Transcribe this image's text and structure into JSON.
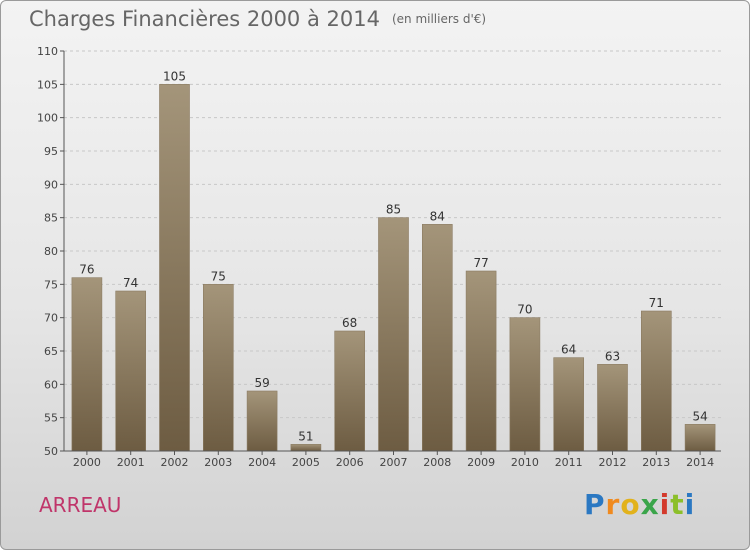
{
  "header": {
    "title": "Charges Financières 2000 à 2014",
    "subtitle": "(en milliers d'€)"
  },
  "footer": {
    "commune": "ARREAU",
    "logo": [
      "P",
      "r",
      "o",
      "x",
      "i",
      "t",
      "i"
    ]
  },
  "chart_data": {
    "type": "bar",
    "title": "Charges Financières 2000 à 2014",
    "subtitle": "(en milliers d'€)",
    "categories": [
      "2000",
      "2001",
      "2002",
      "2003",
      "2004",
      "2005",
      "2006",
      "2007",
      "2008",
      "2009",
      "2010",
      "2011",
      "2012",
      "2013",
      "2014"
    ],
    "values": [
      76,
      74,
      105,
      75,
      59,
      51,
      68,
      85,
      84,
      77,
      70,
      64,
      63,
      71,
      54
    ],
    "ylim": [
      50,
      110
    ],
    "yticks": [
      50,
      55,
      60,
      65,
      70,
      75,
      80,
      85,
      90,
      95,
      100,
      105,
      110
    ],
    "grid": true,
    "bar_color_top": "#a4957a",
    "bar_color_bottom": "#6d5c42",
    "colors": {
      "commune": "#c0356a",
      "axis": "#555555",
      "grid": "#c8c8c8"
    }
  }
}
